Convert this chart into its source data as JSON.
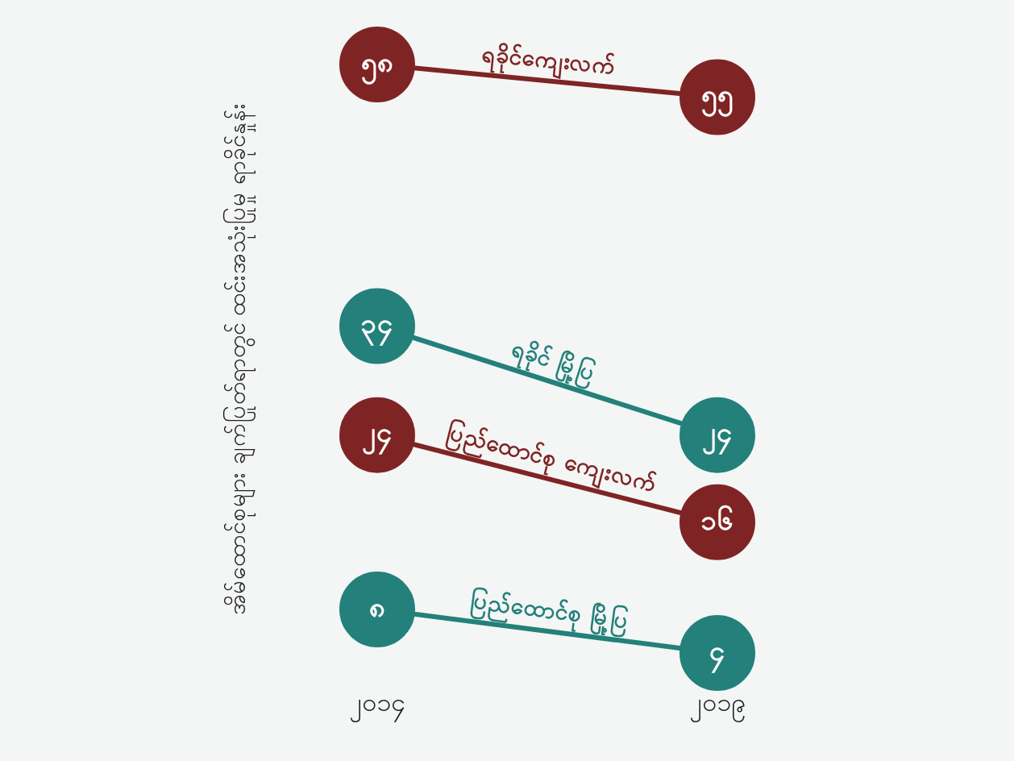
{
  "chart_data": {
    "type": "line",
    "ylabel": "အိမ်ထောင်စုများ ချက်ပြုတ်ရာတွင် ထင်းအသုံးပြုမှု ရာခိုင်နှုန်း",
    "categories": [
      "၂၀၁၄",
      "၂၀၁၉"
    ],
    "tick_labels": "x",
    "grid": false,
    "legend": false,
    "marker": "circle",
    "line_style": "solid",
    "series": [
      {
        "name": "ရခိုင်ကျေးလက်",
        "color": "#7f2424",
        "values": [
          58,
          55
        ],
        "value_labels": [
          "၅၈",
          "၅၅"
        ]
      },
      {
        "name": "ရခိုင် မြို့ပြ",
        "color": "#23807a",
        "values": [
          34,
          24
        ],
        "value_labels": [
          "၃၄",
          "၂၄"
        ]
      },
      {
        "name": "ပြည်ထောင်စု ကျေးလက်",
        "color": "#7f2424",
        "values": [
          24,
          16
        ],
        "value_labels": [
          "၂၄",
          "၁၆"
        ]
      },
      {
        "name": "ပြည်ထောင်စု မြို့ပြ",
        "color": "#23807a",
        "values": [
          8,
          4
        ],
        "value_labels": [
          "၈",
          "၄"
        ]
      }
    ]
  }
}
